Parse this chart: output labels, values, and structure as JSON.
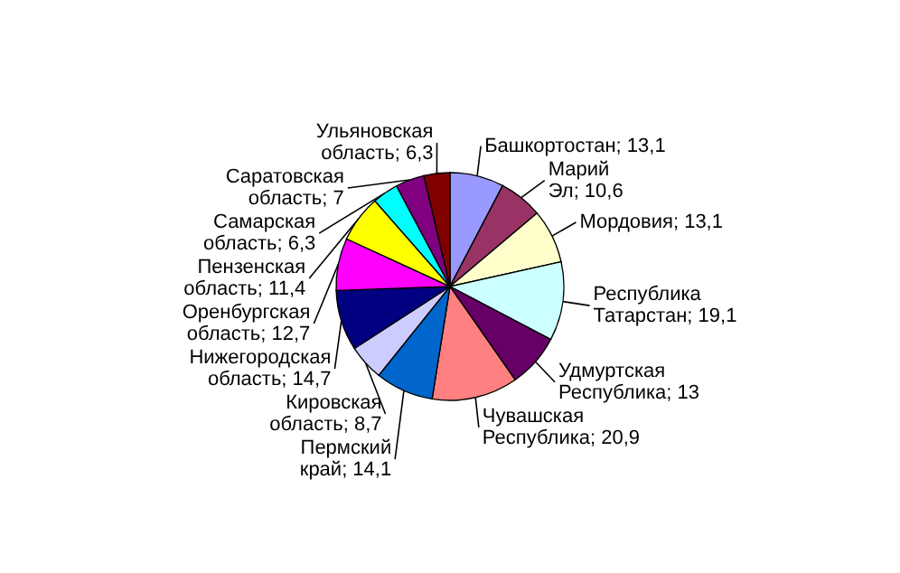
{
  "chart_data": {
    "type": "pie",
    "categories": [
      "Башкортостан",
      "Марий Эл",
      "Мордовия",
      "Республика Татарстан",
      "Удмуртская Республика",
      "Чувашская Республика",
      "Пермский край",
      "Кировская область",
      "Нижегородская область",
      "Оренбургская область",
      "Пензенская область",
      "Самарская область",
      "Саратовская область",
      "Ульяновская область"
    ],
    "values": [
      13.1,
      10.6,
      13.1,
      19.1,
      13,
      20.9,
      14.1,
      8.7,
      14.7,
      12.7,
      11.4,
      6.3,
      7,
      6.3
    ],
    "value_labels": [
      "13,1",
      "10,6",
      "13,1",
      "19,1",
      "13",
      "20,9",
      "14,1",
      "8,7",
      "14,7",
      "12,7",
      "11,4",
      "6,3",
      "7",
      "6,3"
    ],
    "colors": [
      "#9999ff",
      "#993366",
      "#ffffcc",
      "#ccffff",
      "#660066",
      "#ff8080",
      "#0066cc",
      "#ccccff",
      "#000080",
      "#ff00ff",
      "#ffff00",
      "#00ffff",
      "#800080",
      "#800000"
    ]
  }
}
